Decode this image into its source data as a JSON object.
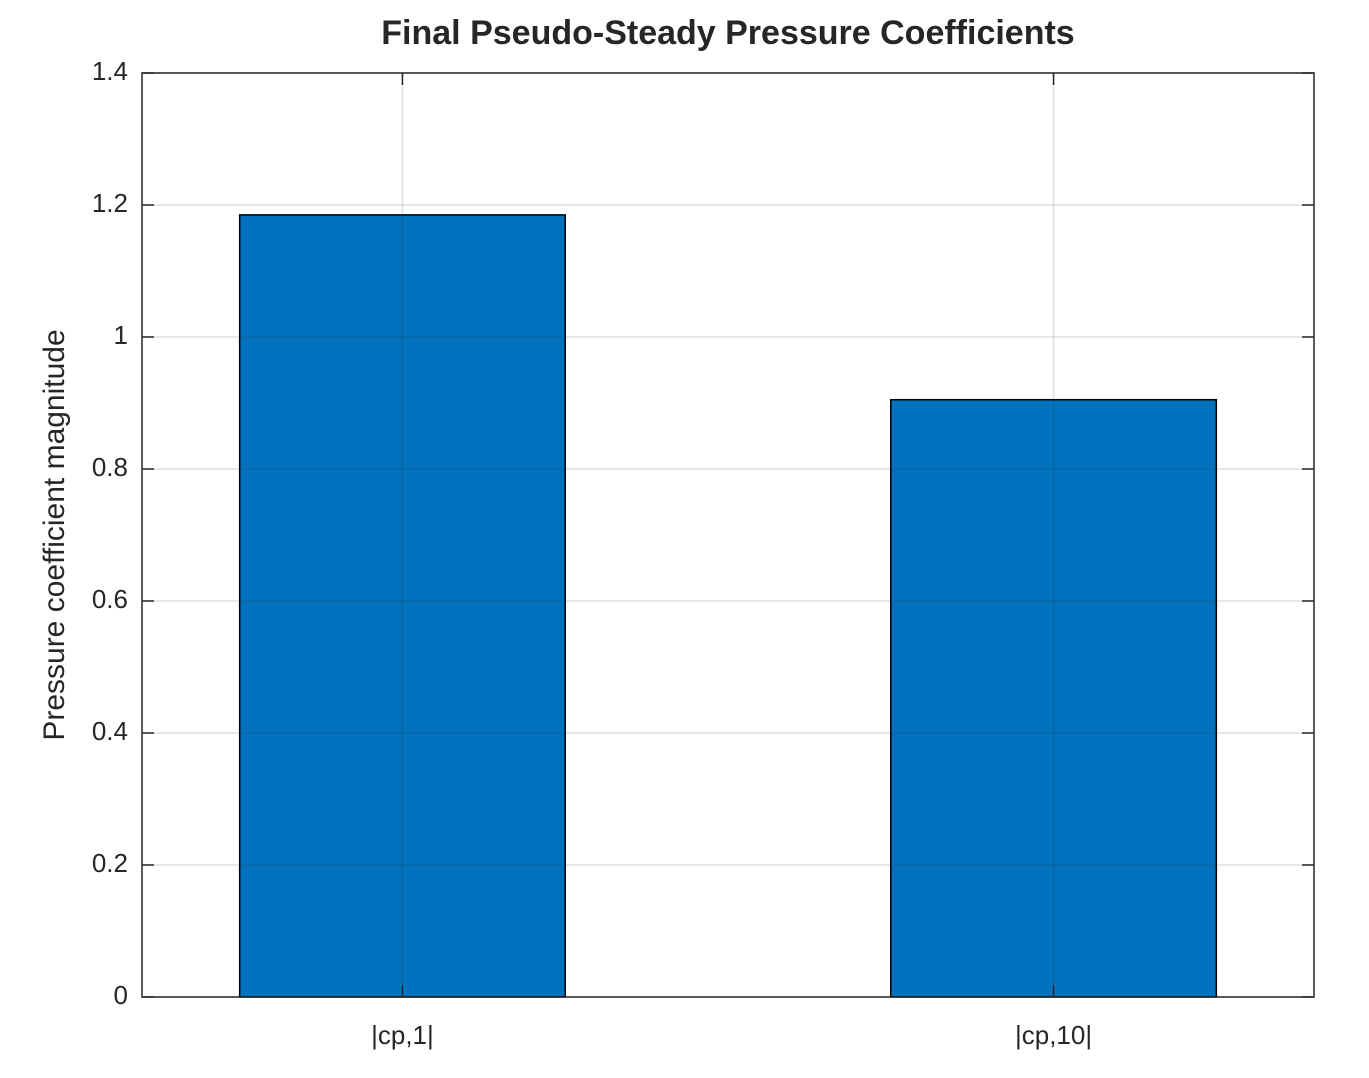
{
  "chart_data": {
    "type": "bar",
    "title": "Final Pseudo-Steady Pressure Coefficients",
    "ylabel": "Pressure coefficient magnitude",
    "categories": [
      "|cp,1|",
      "|cp,10|"
    ],
    "values": [
      1.185,
      0.905
    ],
    "color": "#0072bd",
    "ylim": [
      0,
      1.4
    ],
    "yticks": [
      0,
      0.2,
      0.4,
      0.6,
      0.8,
      1,
      1.2,
      1.4
    ],
    "grid": true
  }
}
